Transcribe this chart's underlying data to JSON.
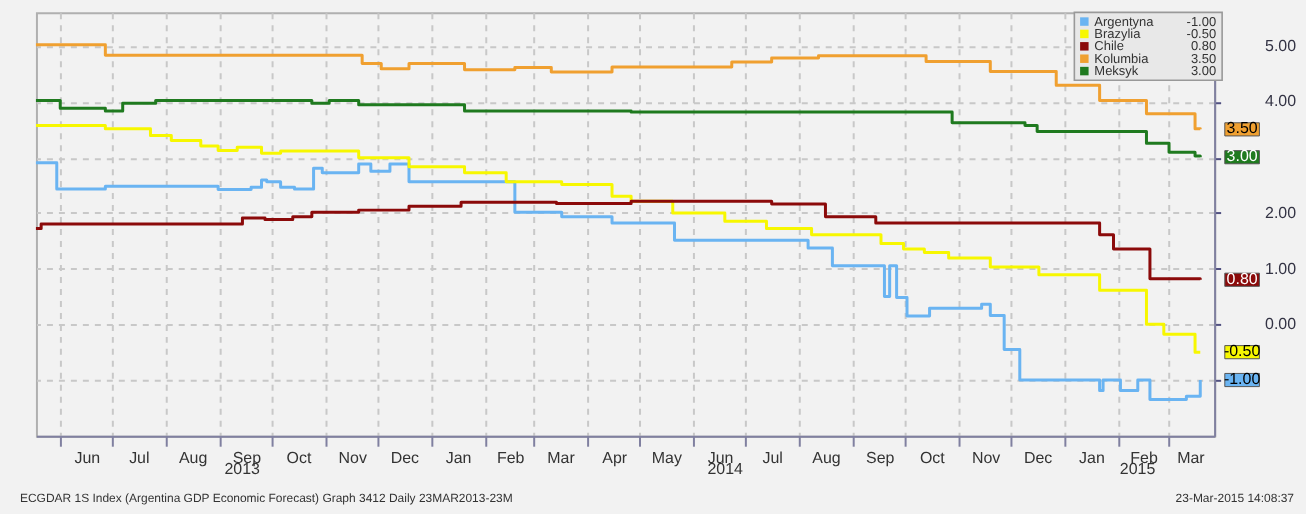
{
  "chart_data": {
    "type": "step",
    "grid": true,
    "legend": "top right",
    "ylim": [
      -2,
      5.6
    ],
    "yticks": [
      {
        "value": -1,
        "label": null
      },
      {
        "value": 0,
        "label": "0.00"
      },
      {
        "value": 1,
        "label": "1.00"
      },
      {
        "value": 2,
        "label": "2.00"
      },
      {
        "value": 3,
        "label": null
      },
      {
        "value": 4,
        "label": "4.00"
      },
      {
        "value": 5,
        "label": "5.00"
      }
    ],
    "xlim": [
      "2013-05-18",
      "2015-03-28"
    ],
    "xticks": [
      {
        "value": "2013-06-01",
        "label": null
      },
      {
        "value": "2013-06-16",
        "label": "Jun"
      },
      {
        "value": "2013-07-01",
        "label": null
      },
      {
        "value": "2013-07-16",
        "label": "Jul"
      },
      {
        "value": "2013-08-01",
        "label": null
      },
      {
        "value": "2013-08-16",
        "label": "Aug"
      },
      {
        "value": "2013-09-01",
        "label": null
      },
      {
        "value": "2013-09-16",
        "label": "Sep"
      },
      {
        "value": "2013-10-01",
        "label": null
      },
      {
        "value": "2013-10-16",
        "label": "Oct"
      },
      {
        "value": "2013-11-01",
        "label": null
      },
      {
        "value": "2013-11-16",
        "label": "Nov"
      },
      {
        "value": "2013-12-01",
        "label": null
      },
      {
        "value": "2013-12-16",
        "label": "Dec"
      },
      {
        "value": "2014-01-01",
        "label": null
      },
      {
        "value": "2014-01-16",
        "label": "Jan"
      },
      {
        "value": "2014-02-01",
        "label": null
      },
      {
        "value": "2014-02-15",
        "label": "Feb"
      },
      {
        "value": "2014-03-01",
        "label": null
      },
      {
        "value": "2014-03-16",
        "label": "Mar"
      },
      {
        "value": "2014-04-01",
        "label": null
      },
      {
        "value": "2014-04-16",
        "label": "Apr"
      },
      {
        "value": "2014-05-01",
        "label": null
      },
      {
        "value": "2014-05-16",
        "label": "May"
      },
      {
        "value": "2014-06-01",
        "label": null
      },
      {
        "value": "2014-06-16",
        "label": "Jun"
      },
      {
        "value": "2014-07-01",
        "label": null
      },
      {
        "value": "2014-07-16",
        "label": "Jul"
      },
      {
        "value": "2014-08-01",
        "label": null
      },
      {
        "value": "2014-08-16",
        "label": "Aug"
      },
      {
        "value": "2014-09-01",
        "label": null
      },
      {
        "value": "2014-09-16",
        "label": "Sep"
      },
      {
        "value": "2014-10-01",
        "label": null
      },
      {
        "value": "2014-10-16",
        "label": "Oct"
      },
      {
        "value": "2014-11-01",
        "label": null
      },
      {
        "value": "2014-11-16",
        "label": "Nov"
      },
      {
        "value": "2014-12-01",
        "label": null
      },
      {
        "value": "2014-12-16",
        "label": "Dec"
      },
      {
        "value": "2015-01-01",
        "label": null
      },
      {
        "value": "2015-01-16",
        "label": "Jan"
      },
      {
        "value": "2015-02-01",
        "label": null
      },
      {
        "value": "2015-02-15",
        "label": "Feb"
      },
      {
        "value": "2015-03-01",
        "label": null
      },
      {
        "value": "2015-03-14",
        "label": "Mar"
      }
    ],
    "annotations": [
      "2013",
      "2014",
      "2015",
      "ECGDAR 1S Index (Argentina GDP Economic Forecast) Graph 3412  Daily 23MAR2013-23M",
      "23-Mar-2015 14:08:37"
    ],
    "series": [
      {
        "name": "Argentyna",
        "color": "#6ab4f2",
        "x": [
          "2013-05-18",
          "2013-05-30",
          "2013-06-27",
          "2013-08-31",
          "2013-09-19",
          "2013-09-25",
          "2013-09-28",
          "2013-10-06",
          "2013-10-14",
          "2013-10-25",
          "2013-10-30",
          "2013-11-20",
          "2013-11-27",
          "2013-12-08",
          "2013-12-19",
          "2014-02-18",
          "2014-03-17",
          "2014-04-15",
          "2014-05-21",
          "2014-08-06",
          "2014-08-20",
          "2014-09-19",
          "2014-09-22",
          "2014-09-26",
          "2014-10-02",
          "2014-10-15",
          "2014-11-14",
          "2014-11-19",
          "2014-11-27",
          "2014-12-06",
          "2015-01-21",
          "2015-01-23",
          "2015-02-02",
          "2015-02-12",
          "2015-02-19",
          "2015-03-12",
          "2015-03-20"
        ],
        "values": [
          2.9,
          2.43,
          2.48,
          2.42,
          2.46,
          2.59,
          2.56,
          2.46,
          2.43,
          2.8,
          2.72,
          2.88,
          2.75,
          2.88,
          2.56,
          2.01,
          1.93,
          1.82,
          1.51,
          1.37,
          1.05,
          0.5,
          1.05,
          0.48,
          0.15,
          0.29,
          0.36,
          0.16,
          -0.45,
          -1.0,
          -1.19,
          -1.0,
          -1.19,
          -1.0,
          -1.35,
          -1.29,
          -1.0
        ],
        "value_labels": [
          null,
          null,
          null,
          null,
          null,
          null,
          null,
          null,
          null,
          null,
          null,
          null,
          null,
          null,
          null,
          null,
          null,
          null,
          null,
          null,
          null,
          null,
          null,
          null,
          null,
          null,
          null,
          null,
          null,
          null,
          null,
          null,
          null,
          null,
          null,
          null,
          "-1.00"
        ]
      },
      {
        "name": "Brazylia",
        "color": "#f7f700",
        "x": [
          "2013-05-18",
          "2013-06-27",
          "2013-07-23",
          "2013-08-04",
          "2013-08-21",
          "2013-08-31",
          "2013-09-11",
          "2013-09-25",
          "2013-10-06",
          "2013-11-20",
          "2013-12-19",
          "2014-01-20",
          "2014-02-13",
          "2014-03-17",
          "2014-04-15",
          "2014-04-26",
          "2014-05-20",
          "2014-06-19",
          "2014-07-13",
          "2014-08-08",
          "2014-09-17",
          "2014-09-30",
          "2014-10-12",
          "2014-10-26",
          "2014-11-19",
          "2014-12-17",
          "2015-01-21",
          "2015-02-17",
          "2015-02-27",
          "2015-03-17",
          "2015-03-20"
        ],
        "values": [
          3.57,
          3.51,
          3.39,
          3.3,
          3.2,
          3.12,
          3.18,
          3.07,
          3.11,
          2.99,
          2.83,
          2.72,
          2.56,
          2.51,
          2.3,
          2.21,
          2.0,
          1.85,
          1.72,
          1.61,
          1.45,
          1.35,
          1.29,
          1.19,
          1.03,
          0.89,
          0.61,
          0.0,
          -0.18,
          -0.5,
          -0.5
        ],
        "value_labels": [
          null,
          null,
          null,
          null,
          null,
          null,
          null,
          null,
          null,
          null,
          null,
          null,
          null,
          null,
          null,
          null,
          null,
          null,
          null,
          null,
          null,
          null,
          null,
          null,
          null,
          null,
          null,
          null,
          null,
          null,
          "-0.50"
        ]
      },
      {
        "name": "Chile",
        "color": "#8b0a0a",
        "x": [
          "2013-05-18",
          "2013-05-21",
          "2013-09-14",
          "2013-09-27",
          "2013-10-13",
          "2013-10-24",
          "2013-11-20",
          "2013-12-19",
          "2014-01-18",
          "2014-03-14",
          "2014-04-26",
          "2014-07-16",
          "2014-08-16",
          "2014-09-14",
          "2015-01-21",
          "2015-01-29",
          "2015-02-19",
          "2015-03-20"
        ],
        "values": [
          1.72,
          1.8,
          1.91,
          1.88,
          1.93,
          2.01,
          2.05,
          2.12,
          2.19,
          2.17,
          2.21,
          2.16,
          1.93,
          1.82,
          1.61,
          1.35,
          0.82,
          0.8
        ],
        "value_labels": [
          null,
          null,
          null,
          null,
          null,
          null,
          null,
          null,
          null,
          null,
          null,
          null,
          null,
          null,
          null,
          null,
          null,
          "0.80"
        ]
      },
      {
        "name": "Kolumbia",
        "color": "#f0a030",
        "x": [
          "2013-05-18",
          "2013-06-27",
          "2013-11-22",
          "2013-12-03",
          "2013-12-19",
          "2014-01-20",
          "2014-02-18",
          "2014-03-11",
          "2014-04-15",
          "2014-06-23",
          "2014-07-16",
          "2014-08-12",
          "2014-10-13",
          "2014-11-19",
          "2014-12-27",
          "2015-01-21",
          "2015-02-17",
          "2015-03-17",
          "2015-03-20"
        ],
        "values": [
          5.02,
          4.83,
          4.68,
          4.59,
          4.68,
          4.57,
          4.61,
          4.53,
          4.62,
          4.71,
          4.78,
          4.82,
          4.72,
          4.54,
          4.29,
          4.02,
          3.78,
          3.51,
          3.5
        ],
        "value_labels": [
          null,
          null,
          null,
          null,
          null,
          null,
          null,
          null,
          null,
          null,
          null,
          null,
          null,
          null,
          null,
          null,
          null,
          null,
          "3.50"
        ]
      },
      {
        "name": "Meksyk",
        "color": "#1f7a1f",
        "x": [
          "2013-05-18",
          "2013-06-01",
          "2013-06-27",
          "2013-07-07",
          "2013-07-26",
          "2013-10-24",
          "2013-11-03",
          "2013-11-20",
          "2014-01-20",
          "2014-04-26",
          "2014-10-28",
          "2014-12-09",
          "2014-12-16",
          "2015-02-17",
          "2015-03-02",
          "2015-03-17",
          "2015-03-20"
        ],
        "values": [
          4.02,
          3.88,
          3.83,
          3.97,
          4.02,
          3.97,
          4.02,
          3.94,
          3.83,
          3.81,
          3.62,
          3.57,
          3.46,
          3.25,
          3.09,
          3.02,
          3.0
        ],
        "value_labels": [
          null,
          null,
          null,
          null,
          null,
          null,
          null,
          null,
          null,
          null,
          null,
          null,
          null,
          null,
          null,
          null,
          "3.00"
        ]
      }
    ]
  }
}
